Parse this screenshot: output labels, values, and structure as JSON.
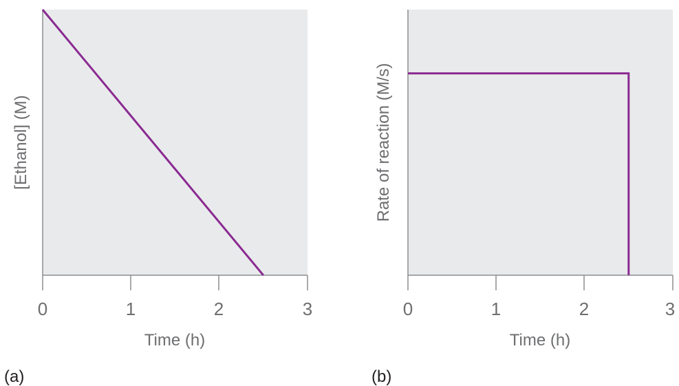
{
  "colors": {
    "plot_bg": "#e9eaec",
    "line": "#8a2a91",
    "axis": "#8c8d8f"
  },
  "chart_data": [
    {
      "panel": "(a)",
      "type": "line",
      "xlabel": "Time (h)",
      "ylabel": "[Ethanol] (M)",
      "xlim": [
        0,
        3
      ],
      "xticks": [
        "0",
        "1",
        "2",
        "3"
      ],
      "series": [
        {
          "x": [
            0,
            2.5
          ],
          "y": [
            1,
            0
          ]
        }
      ],
      "grid": false
    },
    {
      "panel": "(b)",
      "type": "line",
      "xlabel": "Time (h)",
      "ylabel": "Rate of reaction  (M/s)",
      "xlim": [
        0,
        3
      ],
      "xticks": [
        "0",
        "1",
        "2",
        "3"
      ],
      "series": [
        {
          "x": [
            0,
            2.5,
            2.5
          ],
          "y": [
            0.76,
            0.76,
            0
          ]
        }
      ],
      "grid": false
    }
  ]
}
